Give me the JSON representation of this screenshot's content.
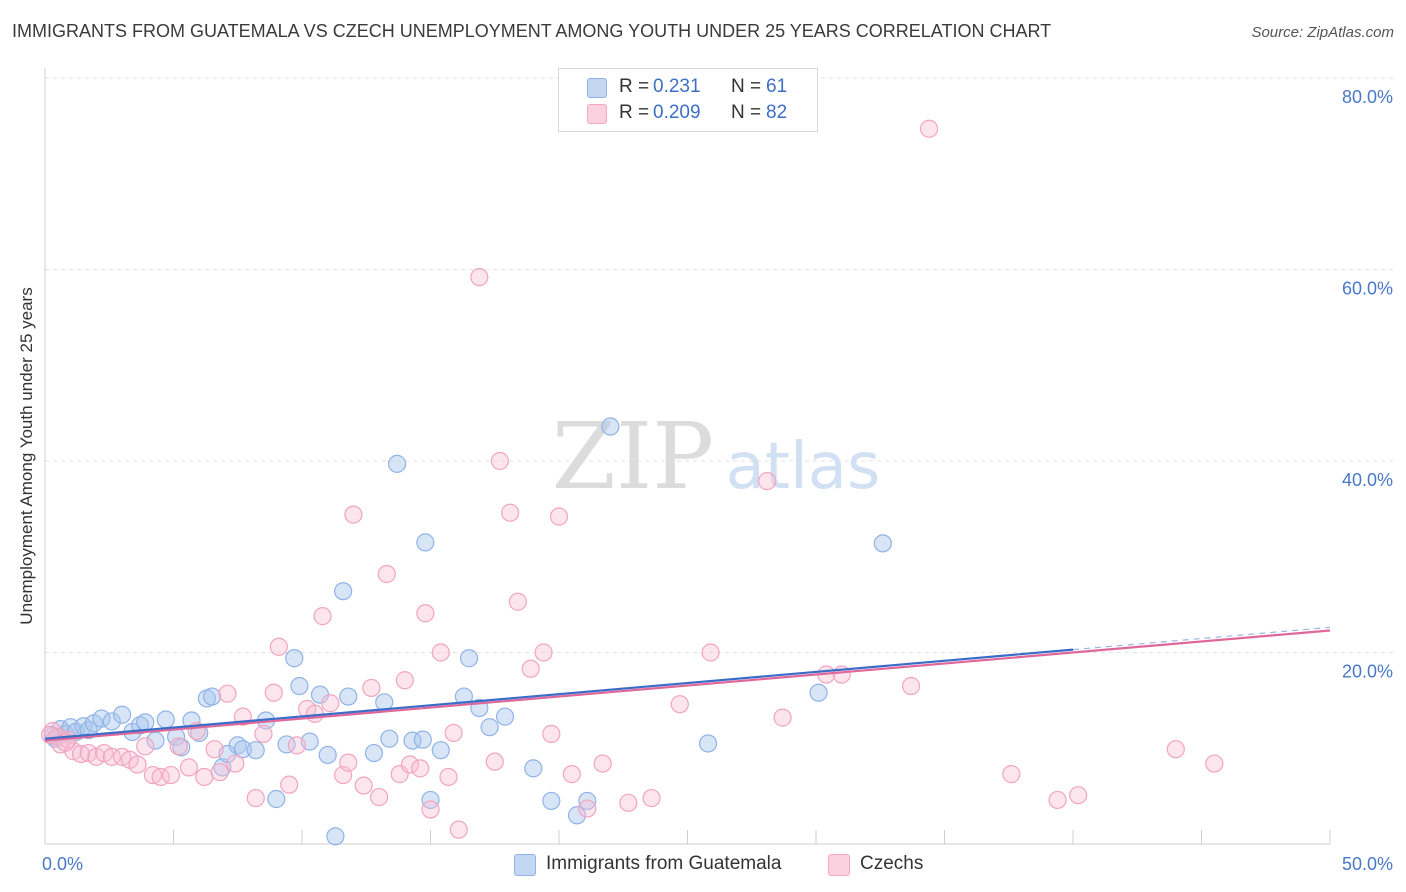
{
  "header": {
    "title": "IMMIGRANTS FROM GUATEMALA VS CZECH UNEMPLOYMENT AMONG YOUTH UNDER 25 YEARS CORRELATION CHART",
    "source": "Source: ZipAtlas.com"
  },
  "watermark": {
    "zip": "ZIP",
    "atlas": "atlas"
  },
  "legend": {
    "r_label": "R =",
    "n_label": "N =",
    "rows": [
      {
        "r": "0.231",
        "n": "61"
      },
      {
        "r": "0.209",
        "n": "82"
      }
    ]
  },
  "chart_data": {
    "type": "scatter",
    "title": "IMMIGRANTS FROM GUATEMALA VS CZECH UNEMPLOYMENT AMONG YOUTH UNDER 25 YEARS CORRELATION CHART",
    "xlabel": "",
    "ylabel": "Unemployment Among Youth under 25 years",
    "xlim": [
      0,
      50
    ],
    "ylim": [
      0,
      80
    ],
    "y_ticks": [
      "80.0%",
      "60.0%",
      "40.0%",
      "20.0%"
    ],
    "y_tick_values": [
      80,
      60,
      40,
      20
    ],
    "x_ticks": [
      "0.0%",
      "50.0%"
    ],
    "x_tick_values": [
      0,
      50
    ],
    "grid": true,
    "legend_position": "top-center",
    "series": [
      {
        "name": "Immigrants from Guatemala",
        "color": "#8fb3e8",
        "line_color": "#3a6cc8",
        "trend": {
          "x": [
            0,
            40
          ],
          "y": [
            11.0,
            20.3
          ]
        },
        "points": [
          [
            0.3,
            11.3
          ],
          [
            0.6,
            12.0
          ],
          [
            0.8,
            11.5
          ],
          [
            1.0,
            12.2
          ],
          [
            1.2,
            11.7
          ],
          [
            1.5,
            12.3
          ],
          [
            1.7,
            11.9
          ],
          [
            1.9,
            12.6
          ],
          [
            2.2,
            13.1
          ],
          [
            2.6,
            12.8
          ],
          [
            3.0,
            13.5
          ],
          [
            3.4,
            11.7
          ],
          [
            3.7,
            12.4
          ],
          [
            3.9,
            12.7
          ],
          [
            4.3,
            10.8
          ],
          [
            4.7,
            13.0
          ],
          [
            5.1,
            11.2
          ],
          [
            5.3,
            10.1
          ],
          [
            5.7,
            12.9
          ],
          [
            6.0,
            11.6
          ],
          [
            6.3,
            15.2
          ],
          [
            6.5,
            15.4
          ],
          [
            6.9,
            8.0
          ],
          [
            7.1,
            9.4
          ],
          [
            7.5,
            10.3
          ],
          [
            7.7,
            9.9
          ],
          [
            8.2,
            9.8
          ],
          [
            8.6,
            12.9
          ],
          [
            9.0,
            4.7
          ],
          [
            9.4,
            10.4
          ],
          [
            9.7,
            19.4
          ],
          [
            9.9,
            16.5
          ],
          [
            10.3,
            10.7
          ],
          [
            10.7,
            15.6
          ],
          [
            11.0,
            9.3
          ],
          [
            11.3,
            0.8
          ],
          [
            11.6,
            26.4
          ],
          [
            11.8,
            15.4
          ],
          [
            12.8,
            9.5
          ],
          [
            13.2,
            14.8
          ],
          [
            13.4,
            11.0
          ],
          [
            13.7,
            39.7
          ],
          [
            14.3,
            10.8
          ],
          [
            14.7,
            10.9
          ],
          [
            14.8,
            31.5
          ],
          [
            15.0,
            4.6
          ],
          [
            15.4,
            9.8
          ],
          [
            16.3,
            15.4
          ],
          [
            16.5,
            19.4
          ],
          [
            16.9,
            14.2
          ],
          [
            17.3,
            12.2
          ],
          [
            17.9,
            13.3
          ],
          [
            19.0,
            7.9
          ],
          [
            19.7,
            4.5
          ],
          [
            20.7,
            3.0
          ],
          [
            21.1,
            4.5
          ],
          [
            22.0,
            43.6
          ],
          [
            25.8,
            10.5
          ],
          [
            30.1,
            15.8
          ],
          [
            32.6,
            31.4
          ],
          [
            0.4,
            11.0
          ]
        ]
      },
      {
        "name": "Czechs",
        "color": "#f5a9c4",
        "line_color": "#e0679a",
        "trend": {
          "x": [
            0,
            50
          ],
          "y": [
            10.8,
            22.3
          ]
        },
        "points": [
          [
            0.3,
            11.8
          ],
          [
            0.5,
            11.2
          ],
          [
            0.6,
            10.4
          ],
          [
            0.9,
            10.9
          ],
          [
            1.1,
            9.7
          ],
          [
            1.4,
            9.4
          ],
          [
            1.7,
            9.5
          ],
          [
            2.0,
            9.1
          ],
          [
            2.3,
            9.5
          ],
          [
            2.6,
            9.1
          ],
          [
            3.0,
            9.1
          ],
          [
            3.3,
            8.8
          ],
          [
            3.6,
            8.3
          ],
          [
            3.9,
            10.2
          ],
          [
            4.2,
            7.2
          ],
          [
            4.5,
            7.0
          ],
          [
            4.9,
            7.2
          ],
          [
            5.2,
            10.2
          ],
          [
            5.6,
            8.0
          ],
          [
            5.9,
            11.8
          ],
          [
            6.2,
            7.0
          ],
          [
            6.6,
            9.9
          ],
          [
            6.8,
            7.5
          ],
          [
            7.1,
            15.7
          ],
          [
            7.4,
            8.4
          ],
          [
            7.7,
            13.3
          ],
          [
            8.2,
            4.8
          ],
          [
            8.5,
            11.5
          ],
          [
            8.9,
            15.8
          ],
          [
            9.1,
            20.6
          ],
          [
            9.5,
            6.2
          ],
          [
            9.8,
            10.3
          ],
          [
            10.2,
            14.1
          ],
          [
            10.5,
            13.6
          ],
          [
            10.8,
            23.8
          ],
          [
            11.1,
            14.7
          ],
          [
            11.6,
            7.2
          ],
          [
            11.8,
            8.5
          ],
          [
            12.0,
            34.4
          ],
          [
            12.4,
            6.1
          ],
          [
            12.7,
            16.3
          ],
          [
            13.0,
            4.9
          ],
          [
            13.3,
            28.2
          ],
          [
            13.8,
            7.3
          ],
          [
            14.0,
            17.1
          ],
          [
            14.2,
            8.3
          ],
          [
            14.6,
            7.9
          ],
          [
            14.8,
            24.1
          ],
          [
            15.0,
            3.6
          ],
          [
            15.4,
            20.0
          ],
          [
            15.7,
            7.0
          ],
          [
            15.9,
            11.6
          ],
          [
            16.1,
            1.5
          ],
          [
            16.9,
            59.2
          ],
          [
            17.5,
            8.6
          ],
          [
            17.7,
            40.0
          ],
          [
            18.1,
            34.6
          ],
          [
            18.4,
            25.3
          ],
          [
            18.9,
            18.3
          ],
          [
            19.4,
            20.0
          ],
          [
            19.7,
            11.5
          ],
          [
            20.0,
            34.2
          ],
          [
            20.5,
            7.3
          ],
          [
            21.1,
            3.7
          ],
          [
            21.7,
            8.4
          ],
          [
            22.7,
            4.3
          ],
          [
            23.6,
            4.8
          ],
          [
            24.7,
            14.6
          ],
          [
            25.9,
            20.0
          ],
          [
            28.1,
            37.9
          ],
          [
            28.7,
            13.2
          ],
          [
            30.4,
            17.7
          ],
          [
            31.0,
            17.7
          ],
          [
            33.7,
            16.5
          ],
          [
            34.4,
            74.7
          ],
          [
            37.6,
            7.3
          ],
          [
            39.4,
            4.6
          ],
          [
            40.2,
            5.1
          ],
          [
            44.0,
            9.9
          ],
          [
            45.5,
            8.4
          ],
          [
            0.2,
            11.4
          ],
          [
            0.8,
            10.6
          ]
        ]
      }
    ]
  },
  "bottom_legend": {
    "items": [
      {
        "label": "Immigrants from Guatemala"
      },
      {
        "label": "Czechs"
      }
    ]
  }
}
